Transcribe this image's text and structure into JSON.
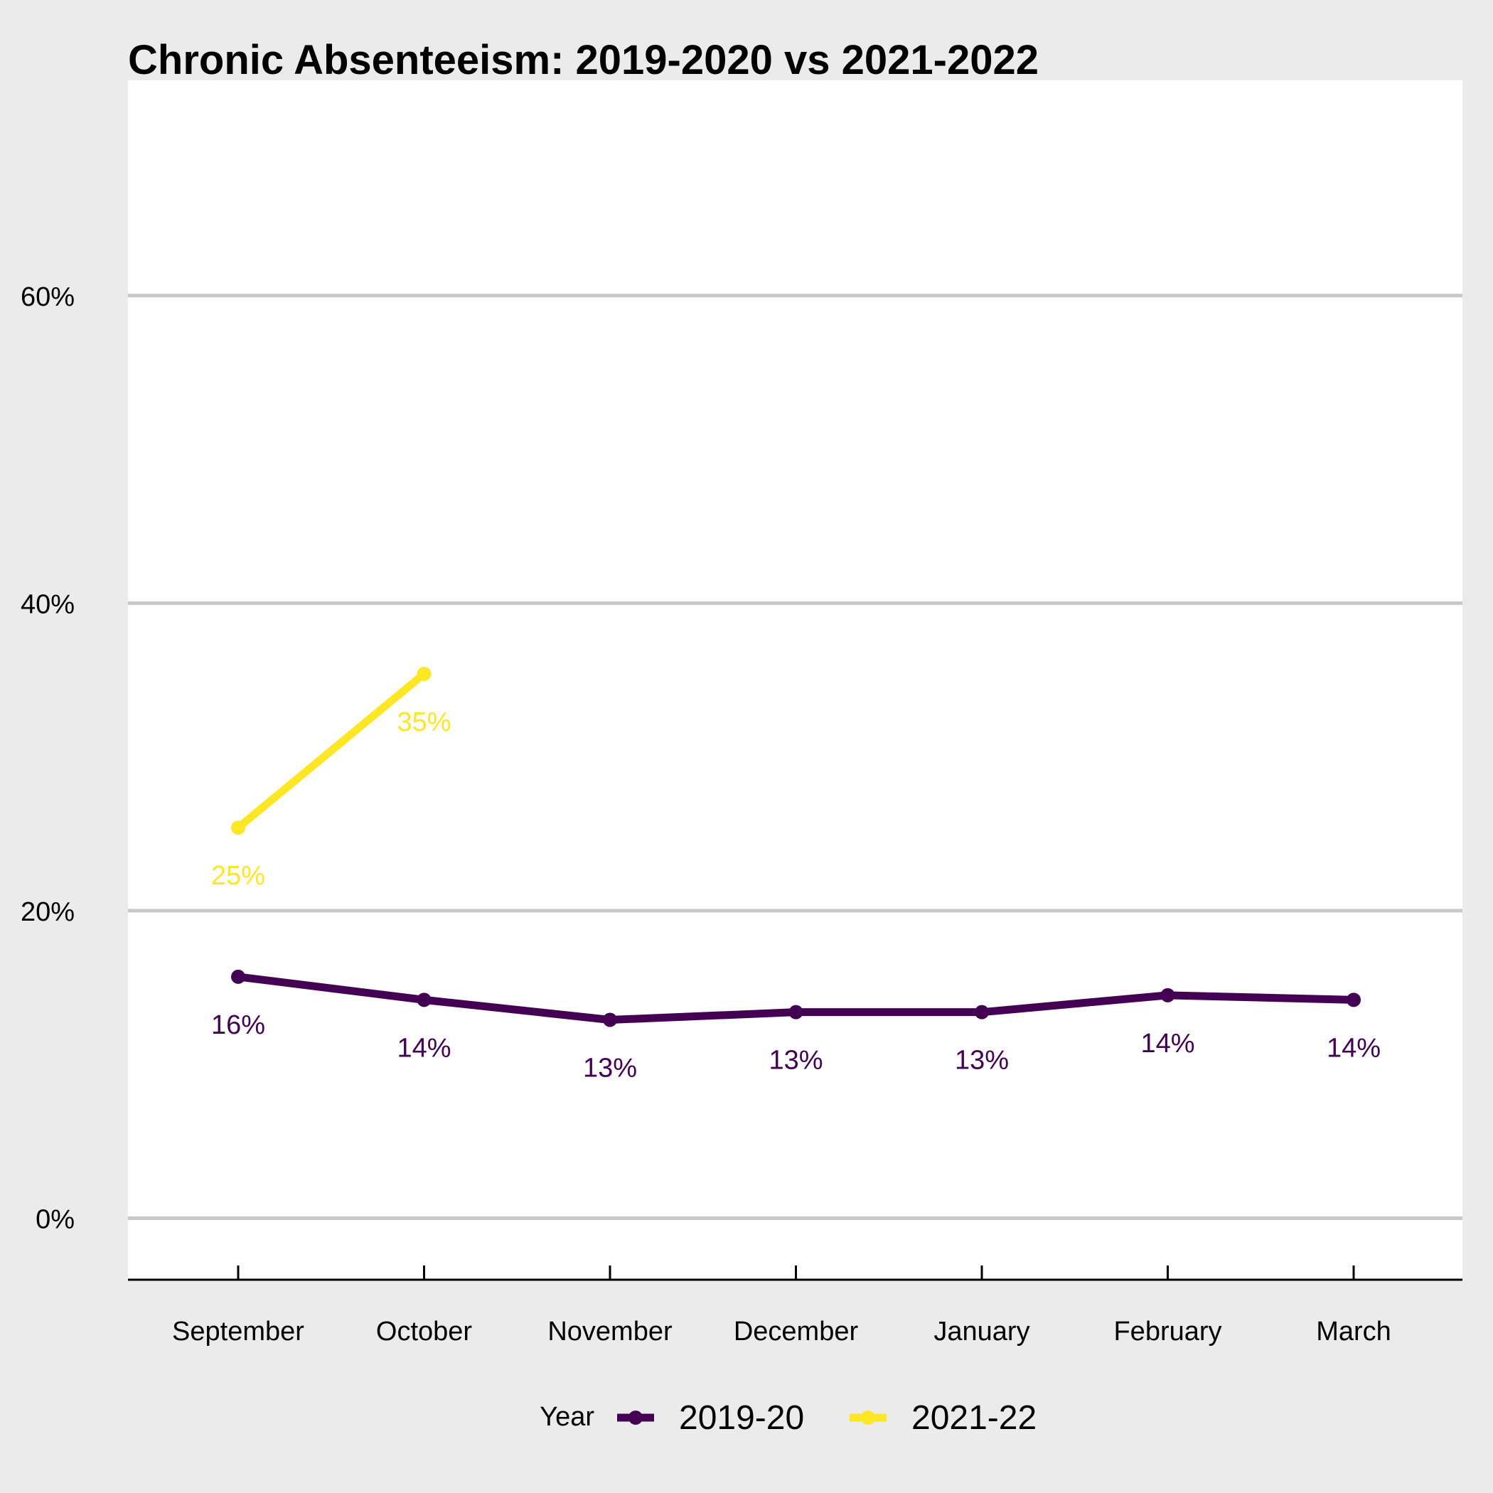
{
  "chart_data": {
    "type": "line",
    "title": "Chronic Absenteeism: 2019-2020 vs 2021-2022",
    "xlabel": "",
    "ylabel": "",
    "categories": [
      "September",
      "October",
      "November",
      "December",
      "January",
      "February",
      "March"
    ],
    "ylim": [
      -4,
      74
    ],
    "yticks": [
      0,
      20,
      40,
      60
    ],
    "ytick_labels": [
      "0%",
      "20%",
      "40%",
      "60%"
    ],
    "grid": "horizontal",
    "legend": {
      "title": "Year",
      "placement": "bottom"
    },
    "series": [
      {
        "name": "2019-20",
        "color": "#440154",
        "values": [
          15.7,
          14.2,
          12.9,
          13.4,
          13.4,
          14.5,
          14.2
        ],
        "labels": [
          "16%",
          "14%",
          "13%",
          "13%",
          "13%",
          "14%",
          "14%"
        ]
      },
      {
        "name": "2021-22",
        "color": "#fde725",
        "values": [
          25.4,
          35.4,
          null,
          null,
          null,
          null,
          null
        ],
        "labels": [
          "25%",
          "35%",
          "",
          "",
          "",
          "",
          ""
        ]
      }
    ]
  }
}
